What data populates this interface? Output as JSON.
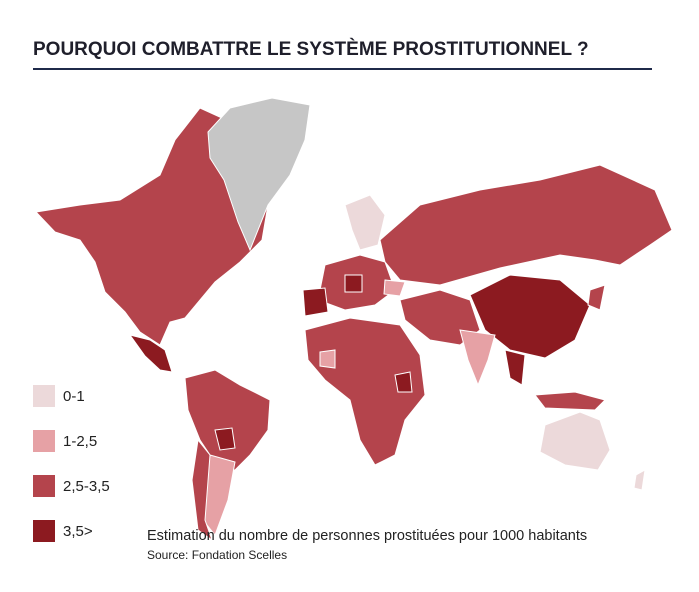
{
  "header": {
    "title": "POURQUOI COMBATTRE LE SYSTÈME PROSTITUTIONNEL ?"
  },
  "legend": [
    {
      "label": "0-1",
      "color": "#ecd9da"
    },
    {
      "label": "1-2,5",
      "color": "#e6a1a5"
    },
    {
      "label": "2,5-3,5",
      "color": "#b4444c"
    },
    {
      "label": "3,5>",
      "color": "#8c1a20"
    }
  ],
  "caption": "Estimation du nombre de personnes prostituées pour 1000 habitants",
  "source": "Source: Fondation Scelles"
}
